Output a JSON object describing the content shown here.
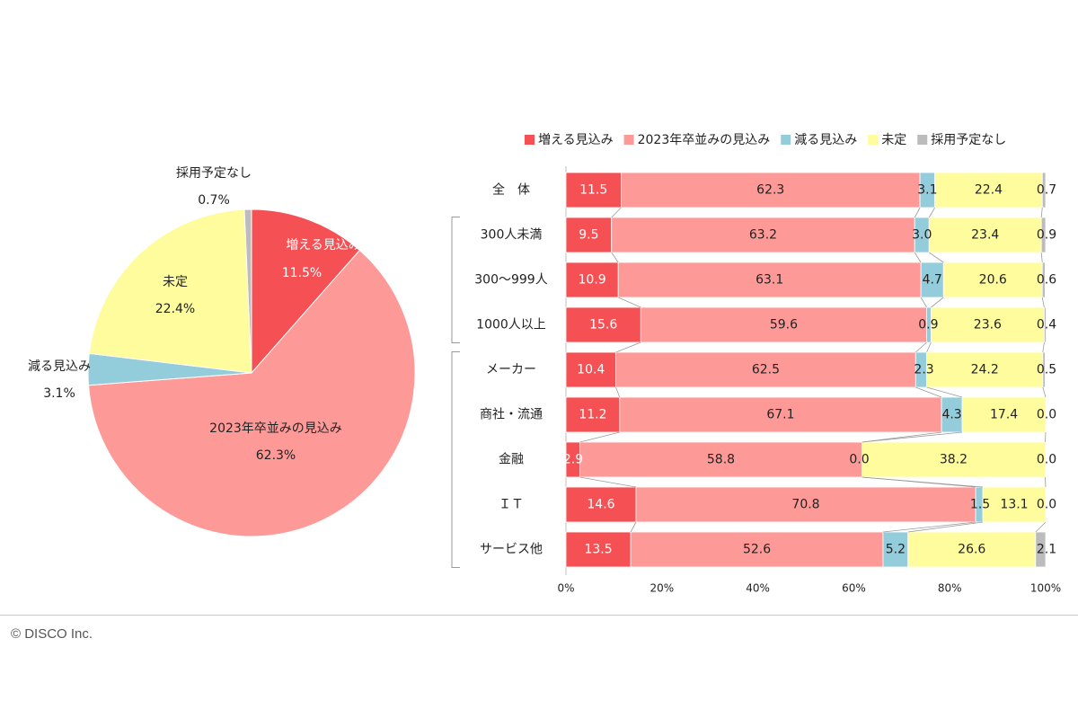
{
  "colors": {
    "increase": "#f55154",
    "same": "#fd9a98",
    "decrease": "#93ccdb",
    "undecided": "#fefc9c",
    "none": "#bcbcbc"
  },
  "footer": {
    "copyright": "© DISCO Inc."
  },
  "chart_data": [
    {
      "type": "pie",
      "slices": [
        {
          "name": "増える見込み",
          "value": 11.5,
          "label": "11.5%",
          "color_key": "increase"
        },
        {
          "name": "2023年卒並みの見込み",
          "value": 62.3,
          "label": "62.3%",
          "color_key": "same"
        },
        {
          "name": "減る見込み",
          "value": 3.1,
          "label": "3.1%",
          "color_key": "decrease"
        },
        {
          "name": "未定",
          "value": 22.4,
          "label": "22.4%",
          "color_key": "undecided"
        },
        {
          "name": "採用予定なし",
          "value": 0.7,
          "label": "0.7%",
          "color_key": "none"
        }
      ]
    },
    {
      "type": "bar",
      "orientation": "horizontal",
      "stacked": "100%",
      "legend_position": "top",
      "categories": [
        "全　体",
        "300人未満",
        "300～999人",
        "1000人以上",
        "メーカー",
        "商社・流通",
        "金融",
        "ＩＴ",
        "サービス他"
      ],
      "series": [
        {
          "name": "増える見込み",
          "color_key": "increase",
          "values": [
            11.5,
            9.5,
            10.9,
            15.6,
            10.4,
            11.2,
            2.9,
            14.6,
            13.5
          ]
        },
        {
          "name": "2023年卒並みの見込み",
          "color_key": "same",
          "values": [
            62.3,
            63.2,
            63.1,
            59.6,
            62.5,
            67.1,
            58.8,
            70.8,
            52.6
          ]
        },
        {
          "name": "減る見込み",
          "color_key": "decrease",
          "values": [
            3.1,
            3.0,
            4.7,
            0.9,
            2.3,
            4.3,
            0.0,
            1.5,
            5.2
          ]
        },
        {
          "name": "未定",
          "color_key": "undecided",
          "values": [
            22.4,
            23.4,
            20.6,
            23.6,
            24.2,
            17.4,
            38.2,
            13.1,
            26.6
          ]
        },
        {
          "name": "採用予定なし",
          "color_key": "none",
          "values": [
            0.7,
            0.9,
            0.6,
            0.4,
            0.5,
            0.0,
            0.0,
            0.0,
            2.1
          ]
        }
      ],
      "xlim": [
        0,
        100
      ],
      "xticks": [
        "0%",
        "20%",
        "40%",
        "60%",
        "80%",
        "100%"
      ],
      "groups": [
        {
          "from": 1,
          "to": 3
        },
        {
          "from": 4,
          "to": 8
        }
      ]
    }
  ]
}
